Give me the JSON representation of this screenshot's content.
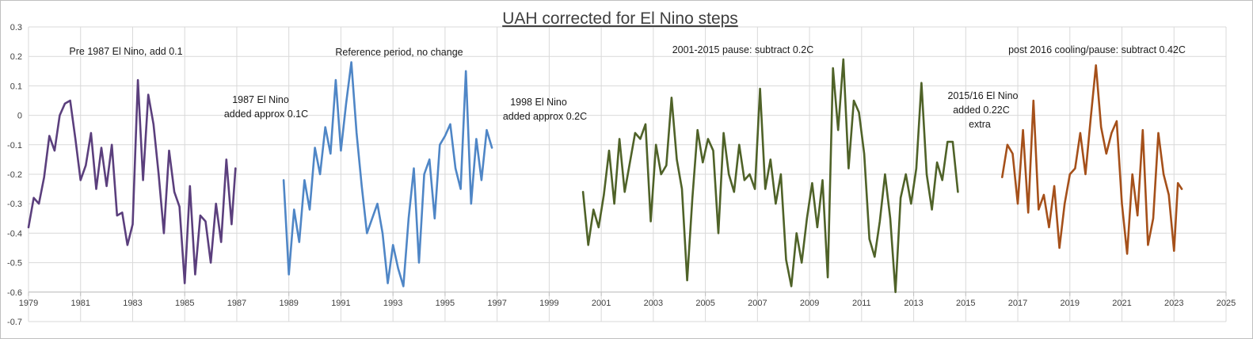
{
  "chart_data": {
    "type": "line",
    "title": "UAH corrected for El Nino steps",
    "xlabel": "",
    "ylabel": "",
    "xlim": [
      1979,
      2025
    ],
    "ylim": [
      -0.7,
      0.3
    ],
    "grid": true,
    "x_ticks": [
      "1979",
      "1981",
      "1983",
      "1985",
      "1987",
      "1989",
      "1991",
      "1993",
      "1995",
      "1997",
      "1999",
      "2001",
      "2003",
      "2005",
      "2007",
      "2009",
      "2011",
      "2013",
      "2015",
      "2017",
      "2019",
      "2021",
      "2023",
      "2025"
    ],
    "y_ticks": [
      "0.3",
      "0.2",
      "0.1",
      "0",
      "-0.1",
      "-0.2",
      "-0.3",
      "-0.4",
      "-0.5",
      "-0.6",
      "-0.7"
    ],
    "annotations": [
      {
        "text": "Pre 1987 El Nino, add 0.1"
      },
      {
        "text": "Reference period, no change"
      },
      {
        "text": "2001-2015  pause: subtract 0.2C"
      },
      {
        "text": "post 2016 cooling/pause: subtract 0.42C"
      },
      {
        "text": "1987 El Nino"
      },
      {
        "text": "added approx 0.1C"
      },
      {
        "text": "1998  El Nino"
      },
      {
        "text": "added approx 0.2C"
      },
      {
        "text": "2015/16  El Nino"
      },
      {
        "text": "added 0.22C"
      },
      {
        "text": "extra"
      }
    ],
    "series": [
      {
        "color": "#5b3f7d",
        "x": [
          1979.0,
          1979.2,
          1979.4,
          1979.6,
          1979.8,
          1980.0,
          1980.2,
          1980.4,
          1980.6,
          1980.8,
          1981.0,
          1981.2,
          1981.4,
          1981.6,
          1981.8,
          1982.0,
          1982.2,
          1982.4,
          1982.6,
          1982.8,
          1983.0,
          1983.2,
          1983.4,
          1983.6,
          1983.8,
          1984.0,
          1984.2,
          1984.4,
          1984.6,
          1984.8,
          1985.0,
          1985.2,
          1985.4,
          1985.6,
          1985.8,
          1986.0,
          1986.2,
          1986.4,
          1986.6,
          1986.8,
          1986.95
        ],
        "y": [
          -0.38,
          -0.28,
          -0.3,
          -0.21,
          -0.07,
          -0.12,
          0.0,
          0.04,
          0.05,
          -0.08,
          -0.22,
          -0.17,
          -0.06,
          -0.25,
          -0.11,
          -0.24,
          -0.1,
          -0.34,
          -0.33,
          -0.44,
          -0.37,
          0.12,
          -0.22,
          0.07,
          -0.03,
          -0.2,
          -0.4,
          -0.12,
          -0.26,
          -0.31,
          -0.57,
          -0.24,
          -0.54,
          -0.34,
          -0.36,
          -0.5,
          -0.3,
          -0.43,
          -0.15,
          -0.37,
          -0.18
        ]
      },
      {
        "color": "#4f86c6",
        "x": [
          1988.8,
          1989.0,
          1989.2,
          1989.4,
          1989.6,
          1989.8,
          1990.0,
          1990.2,
          1990.4,
          1990.6,
          1990.8,
          1991.0,
          1991.2,
          1991.4,
          1991.6,
          1991.8,
          1992.0,
          1992.2,
          1992.4,
          1992.6,
          1992.8,
          1993.0,
          1993.2,
          1993.4,
          1993.6,
          1993.8,
          1994.0,
          1994.2,
          1994.4,
          1994.6,
          1994.8,
          1995.0,
          1995.2,
          1995.4,
          1995.6,
          1995.8,
          1996.0,
          1996.2,
          1996.4,
          1996.6,
          1996.8
        ],
        "y": [
          -0.22,
          -0.54,
          -0.32,
          -0.43,
          -0.22,
          -0.32,
          -0.11,
          -0.2,
          -0.04,
          -0.13,
          0.12,
          -0.12,
          0.04,
          0.18,
          -0.06,
          -0.24,
          -0.4,
          -0.35,
          -0.3,
          -0.4,
          -0.57,
          -0.44,
          -0.52,
          -0.58,
          -0.35,
          -0.18,
          -0.5,
          -0.2,
          -0.15,
          -0.35,
          -0.1,
          -0.07,
          -0.03,
          -0.18,
          -0.25,
          0.15,
          -0.3,
          -0.08,
          -0.22,
          -0.05,
          -0.11
        ]
      },
      {
        "color": "#4f6228",
        "x": [
          2000.3,
          2000.5,
          2000.7,
          2000.9,
          2001.1,
          2001.3,
          2001.5,
          2001.7,
          2001.9,
          2002.1,
          2002.3,
          2002.5,
          2002.7,
          2002.9,
          2003.1,
          2003.3,
          2003.5,
          2003.7,
          2003.9,
          2004.1,
          2004.3,
          2004.5,
          2004.7,
          2004.9,
          2005.1,
          2005.3,
          2005.5,
          2005.7,
          2005.9,
          2006.1,
          2006.3,
          2006.5,
          2006.7,
          2006.9,
          2007.1,
          2007.3,
          2007.5,
          2007.7,
          2007.9,
          2008.1,
          2008.3,
          2008.5,
          2008.7,
          2008.9,
          2009.1,
          2009.3,
          2009.5,
          2009.7,
          2009.9,
          2010.1,
          2010.3,
          2010.5,
          2010.7,
          2010.9,
          2011.1,
          2011.3,
          2011.5,
          2011.7,
          2011.9,
          2012.1,
          2012.3,
          2012.5,
          2012.7,
          2012.9,
          2013.1,
          2013.3,
          2013.5,
          2013.7,
          2013.9,
          2014.1,
          2014.3,
          2014.5,
          2014.7
        ],
        "y": [
          -0.26,
          -0.44,
          -0.32,
          -0.38,
          -0.27,
          -0.12,
          -0.3,
          -0.08,
          -0.26,
          -0.16,
          -0.06,
          -0.08,
          -0.03,
          -0.36,
          -0.1,
          -0.2,
          -0.17,
          0.06,
          -0.15,
          -0.25,
          -0.56,
          -0.28,
          -0.05,
          -0.16,
          -0.08,
          -0.12,
          -0.4,
          -0.06,
          -0.2,
          -0.26,
          -0.1,
          -0.22,
          -0.2,
          -0.25,
          0.09,
          -0.25,
          -0.15,
          -0.3,
          -0.2,
          -0.49,
          -0.58,
          -0.4,
          -0.5,
          -0.35,
          -0.23,
          -0.38,
          -0.22,
          -0.55,
          0.16,
          -0.05,
          0.19,
          -0.18,
          0.05,
          0.01,
          -0.13,
          -0.42,
          -0.48,
          -0.36,
          -0.2,
          -0.35,
          -0.6,
          -0.28,
          -0.2,
          -0.3,
          -0.18,
          0.11,
          -0.2,
          -0.32,
          -0.16,
          -0.22,
          -0.09,
          -0.09,
          -0.26
        ]
      },
      {
        "color": "#a5501a",
        "x": [
          2016.4,
          2016.6,
          2016.8,
          2017.0,
          2017.2,
          2017.4,
          2017.6,
          2017.8,
          2018.0,
          2018.2,
          2018.4,
          2018.6,
          2018.8,
          2019.0,
          2019.2,
          2019.4,
          2019.6,
          2019.8,
          2020.0,
          2020.2,
          2020.4,
          2020.6,
          2020.8,
          2021.0,
          2021.2,
          2021.4,
          2021.6,
          2021.8,
          2022.0,
          2022.2,
          2022.4,
          2022.6,
          2022.8,
          2023.0,
          2023.15,
          2023.3
        ],
        "y": [
          -0.21,
          -0.1,
          -0.13,
          -0.3,
          -0.05,
          -0.33,
          0.05,
          -0.32,
          -0.27,
          -0.38,
          -0.24,
          -0.45,
          -0.3,
          -0.2,
          -0.18,
          -0.06,
          -0.2,
          -0.01,
          0.17,
          -0.04,
          -0.13,
          -0.06,
          -0.02,
          -0.3,
          -0.47,
          -0.2,
          -0.34,
          -0.05,
          -0.44,
          -0.35,
          -0.06,
          -0.2,
          -0.27,
          -0.46,
          -0.23,
          -0.25
        ]
      }
    ]
  }
}
